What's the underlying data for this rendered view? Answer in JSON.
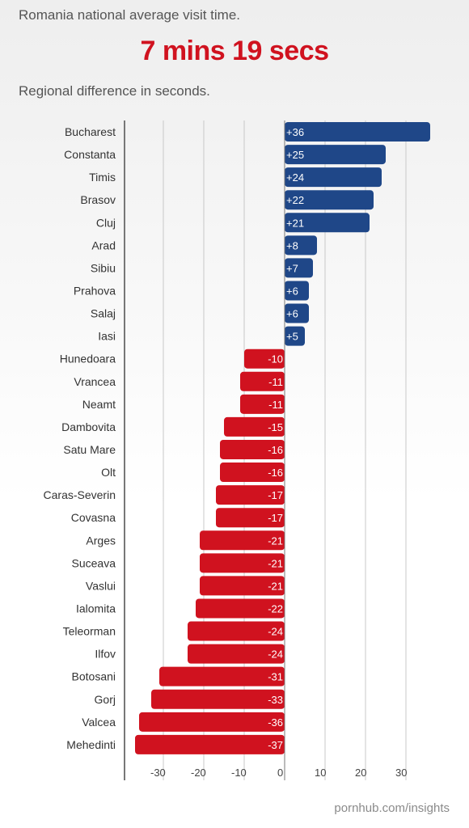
{
  "header": {
    "subtitle": "Romania national average visit time.",
    "headline": "7 mins 19 secs",
    "note": "Regional difference in seconds."
  },
  "footer": {
    "source": "pornhub.com/insights"
  },
  "colors": {
    "positive": "#1f4788",
    "negative": "#d0121f",
    "grid": "#c8c8c8",
    "axis": "#777777"
  },
  "chart_data": {
    "type": "bar",
    "orientation": "horizontal",
    "title": "Regional difference in seconds.",
    "xlim": [
      -37,
      37
    ],
    "ticks": [
      -30,
      -20,
      -10,
      0,
      10,
      20,
      30
    ],
    "tick_labels": [
      "-30",
      "-20",
      "-10",
      "0",
      "10",
      "20",
      "30"
    ],
    "grid": true,
    "categories": [
      "Bucharest",
      "Constanta",
      "Timis",
      "Brasov",
      "Cluj",
      "Arad",
      "Sibiu",
      "Prahova",
      "Salaj",
      "Iasi",
      "Hunedoara",
      "Vrancea",
      "Neamt",
      "Dambovita",
      "Satu Mare",
      "Olt",
      "Caras-Severin",
      "Covasna",
      "Arges",
      "Suceava",
      "Vaslui",
      "Ialomita",
      "Teleorman",
      "Ilfov",
      "Botosani",
      "Gorj",
      "Valcea",
      "Mehedinti"
    ],
    "values": [
      36,
      25,
      24,
      22,
      21,
      8,
      7,
      6,
      6,
      5,
      -10,
      -11,
      -11,
      -15,
      -16,
      -16,
      -17,
      -17,
      -21,
      -21,
      -21,
      -22,
      -24,
      -24,
      -31,
      -33,
      -36,
      -37
    ],
    "labels": [
      "+36",
      "+25",
      "+24",
      "+22",
      "+21",
      "+8",
      "+7",
      "+6",
      "+6",
      "+5",
      "-10",
      "-11",
      "-11",
      "-15",
      "-16",
      "-16",
      "-17",
      "-17",
      "-21",
      "-21",
      "-21",
      "-22",
      "-24",
      "-24",
      "-31",
      "-33",
      "-36",
      "-37"
    ]
  }
}
